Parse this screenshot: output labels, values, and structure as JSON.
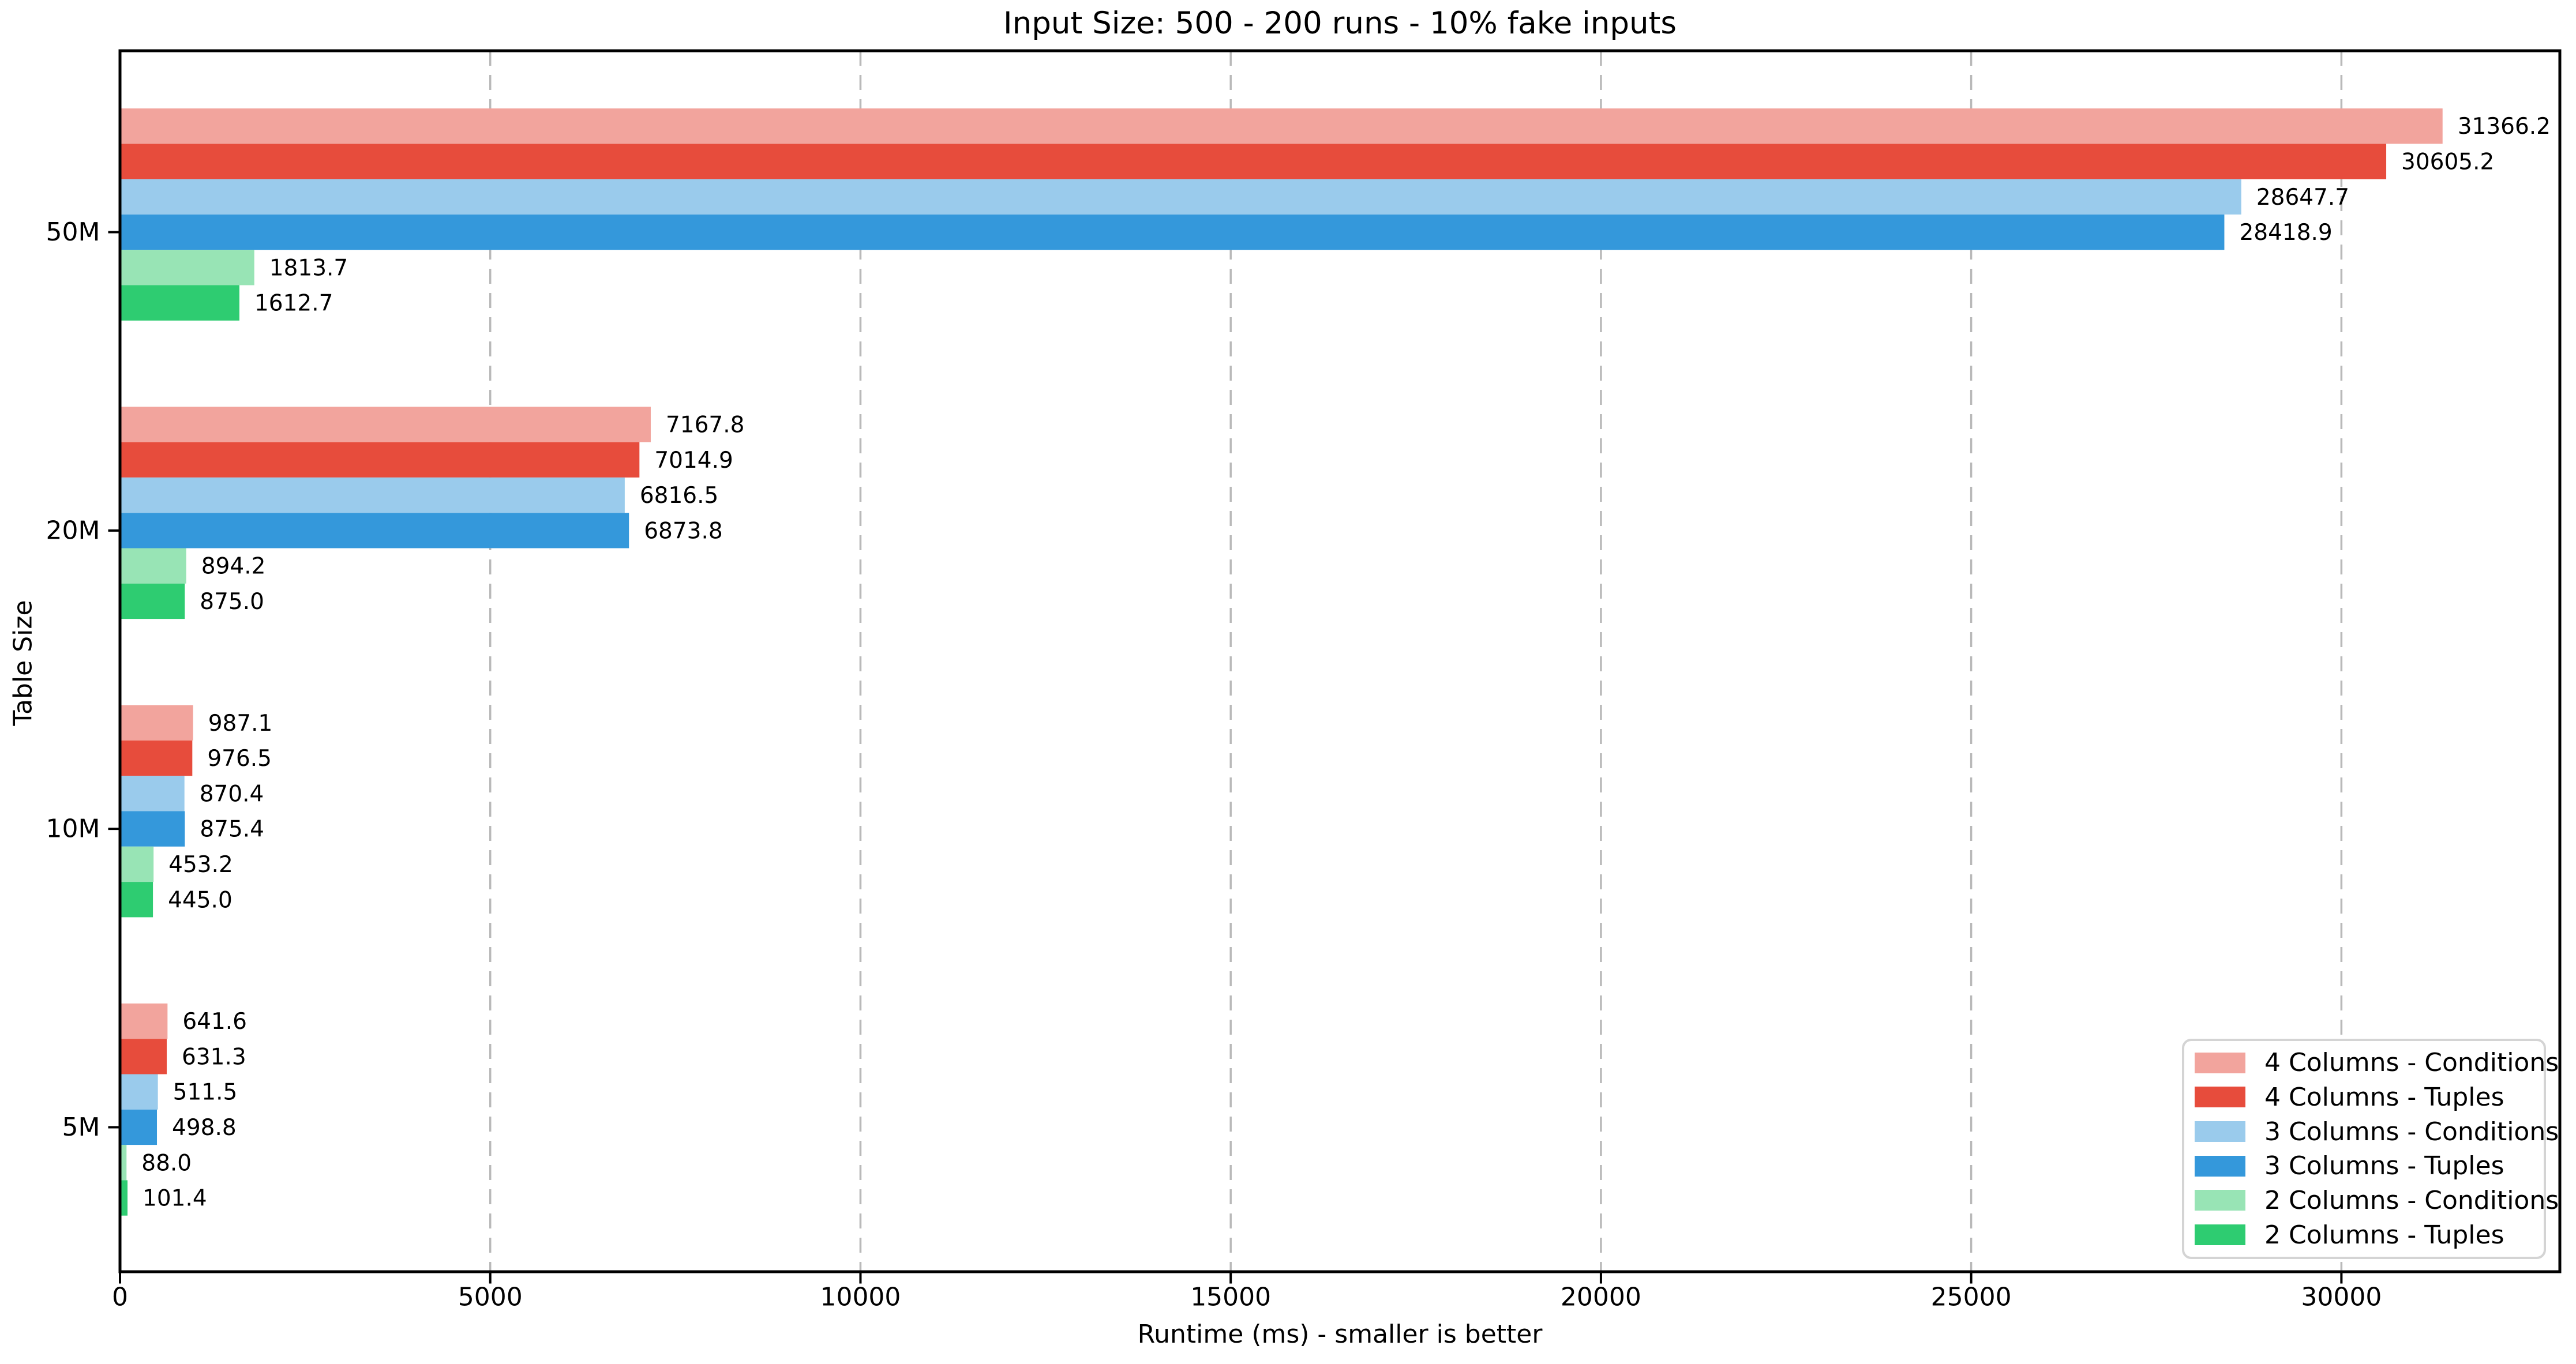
{
  "chart_data": {
    "type": "bar",
    "orientation": "horizontal",
    "title": "Input Size: 500 - 200 runs - 10% fake inputs",
    "xlabel": "Runtime (ms) - smaller is better",
    "ylabel": "Table Size",
    "categories": [
      "50M",
      "20M",
      "10M",
      "5M"
    ],
    "series": [
      {
        "name": "4 Columns - Conditions",
        "color": "#f2a49d",
        "values": [
          31366.2,
          7167.8,
          987.1,
          641.6
        ]
      },
      {
        "name": "4 Columns - Tuples",
        "color": "#e74c3c",
        "values": [
          30605.2,
          7014.9,
          976.5,
          631.3
        ]
      },
      {
        "name": "3 Columns - Conditions",
        "color": "#9acbec",
        "values": [
          28647.7,
          6816.5,
          870.4,
          511.5
        ]
      },
      {
        "name": "3 Columns - Tuples",
        "color": "#3498db",
        "values": [
          28418.9,
          6873.8,
          875.4,
          498.8
        ]
      },
      {
        "name": "2 Columns - Conditions",
        "color": "#98e4b5",
        "values": [
          1813.7,
          894.2,
          453.2,
          88.0
        ]
      },
      {
        "name": "2 Columns - Tuples",
        "color": "#2ecc71",
        "values": [
          1612.7,
          875.0,
          445.0,
          101.4
        ]
      }
    ],
    "xticks": [
      0,
      5000,
      10000,
      15000,
      20000,
      25000,
      30000
    ],
    "xtick_labels": [
      "0",
      "5000",
      "10000",
      "15000",
      "20000",
      "25000",
      "30000"
    ],
    "xlim": [
      0,
      32950
    ],
    "value_label_format": "1-decimal",
    "grid": "vertical-dashed",
    "grid_color": "#b9b9b9",
    "legend_position": "lower right",
    "text_color": "#000000",
    "background_color": "#ffffff"
  }
}
